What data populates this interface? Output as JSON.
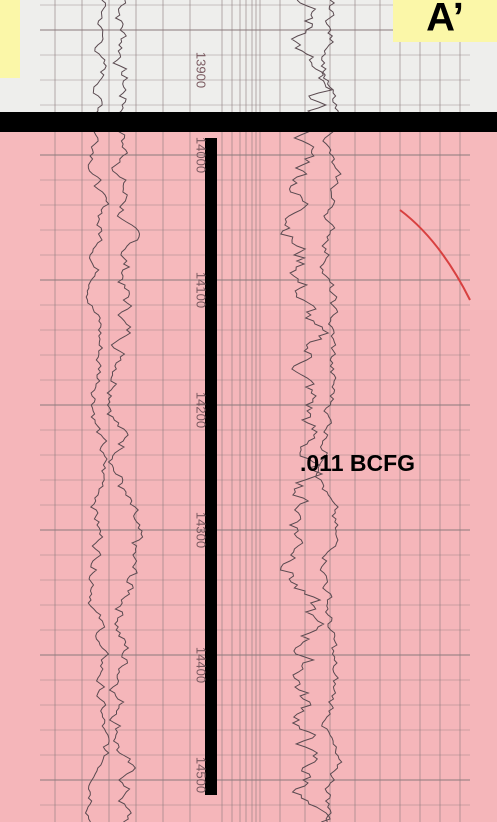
{
  "header": {
    "corner_label": "A’"
  },
  "annotation": ".011 BCFG",
  "depth_labels": [
    "13900",
    "14000",
    "14100",
    "14200",
    "14300",
    "14400",
    "14500"
  ]
}
